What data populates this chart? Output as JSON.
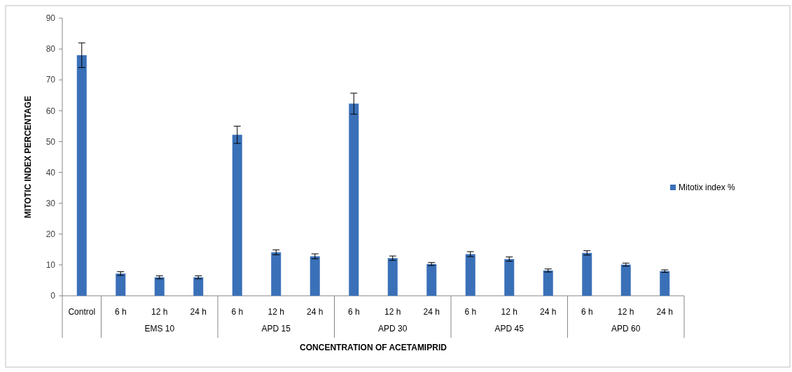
{
  "chart_data": {
    "type": "bar",
    "xlabel": "CONCENTRATION OF ACETAMIPRID",
    "ylabel": "MITOTIC INDEX PERCENTAGE",
    "categories": [
      "Control",
      "6 h",
      "12 h",
      "24 h",
      "6 h",
      "12 h",
      "24 h",
      "6 h",
      "12 h",
      "24 h",
      "6 h",
      "12 h",
      "24 h",
      "6 h",
      "12 h",
      "24 h"
    ],
    "series": [
      {
        "name": "Mitotix index %",
        "color": "#3a70b8",
        "values": [
          78,
          7.2,
          6,
          6,
          52.2,
          14.1,
          12.8,
          62.3,
          12.2,
          10.3,
          13.5,
          11.9,
          8.2,
          13.9,
          10.1,
          8.0
        ],
        "errors": [
          4,
          0.6,
          0.5,
          0.5,
          2.8,
          0.8,
          0.8,
          3.4,
          0.7,
          0.5,
          0.8,
          0.7,
          0.5,
          0.7,
          0.5,
          0.4
        ]
      }
    ],
    "annotations": [
      "EMS 10",
      "APD 15",
      "APD 30",
      "APD 45",
      "APD 60"
    ],
    "ylim": [
      0,
      90
    ],
    "yticks": [
      0,
      10,
      20,
      30,
      40,
      50,
      60,
      70,
      80,
      90
    ],
    "grid": false,
    "legend": "right"
  }
}
